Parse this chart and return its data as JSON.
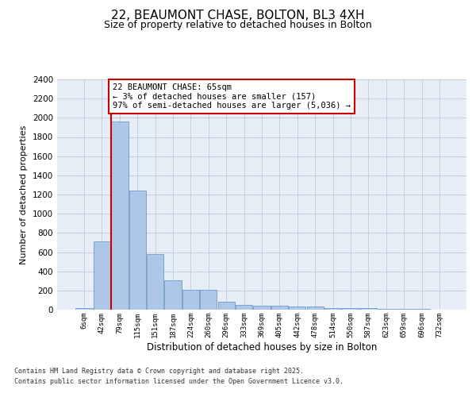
{
  "title_line1": "22, BEAUMONT CHASE, BOLTON, BL3 4XH",
  "title_line2": "Size of property relative to detached houses in Bolton",
  "xlabel": "Distribution of detached houses by size in Bolton",
  "ylabel": "Number of detached properties",
  "bar_labels": [
    "6sqm",
    "42sqm",
    "79sqm",
    "115sqm",
    "151sqm",
    "187sqm",
    "224sqm",
    "260sqm",
    "296sqm",
    "333sqm",
    "369sqm",
    "405sqm",
    "442sqm",
    "478sqm",
    "514sqm",
    "550sqm",
    "587sqm",
    "623sqm",
    "659sqm",
    "696sqm",
    "732sqm"
  ],
  "bar_values": [
    15,
    710,
    1960,
    1240,
    580,
    305,
    205,
    205,
    85,
    50,
    40,
    38,
    35,
    30,
    20,
    20,
    20,
    10,
    8,
    5,
    3
  ],
  "bar_color": "#aec6e8",
  "bar_edgecolor": "#5a8fc2",
  "annotation_text": "22 BEAUMONT CHASE: 65sqm\n← 3% of detached houses are smaller (157)\n97% of semi-detached houses are larger (5,036) →",
  "annotation_box_edgecolor": "#cc0000",
  "vline_color": "#cc0000",
  "ylim": [
    0,
    2400
  ],
  "yticks": [
    0,
    200,
    400,
    600,
    800,
    1000,
    1200,
    1400,
    1600,
    1800,
    2000,
    2200,
    2400
  ],
  "grid_color": "#c0c8d8",
  "bg_color": "#e8eef8",
  "footer_line1": "Contains HM Land Registry data © Crown copyright and database right 2025.",
  "footer_line2": "Contains public sector information licensed under the Open Government Licence v3.0."
}
